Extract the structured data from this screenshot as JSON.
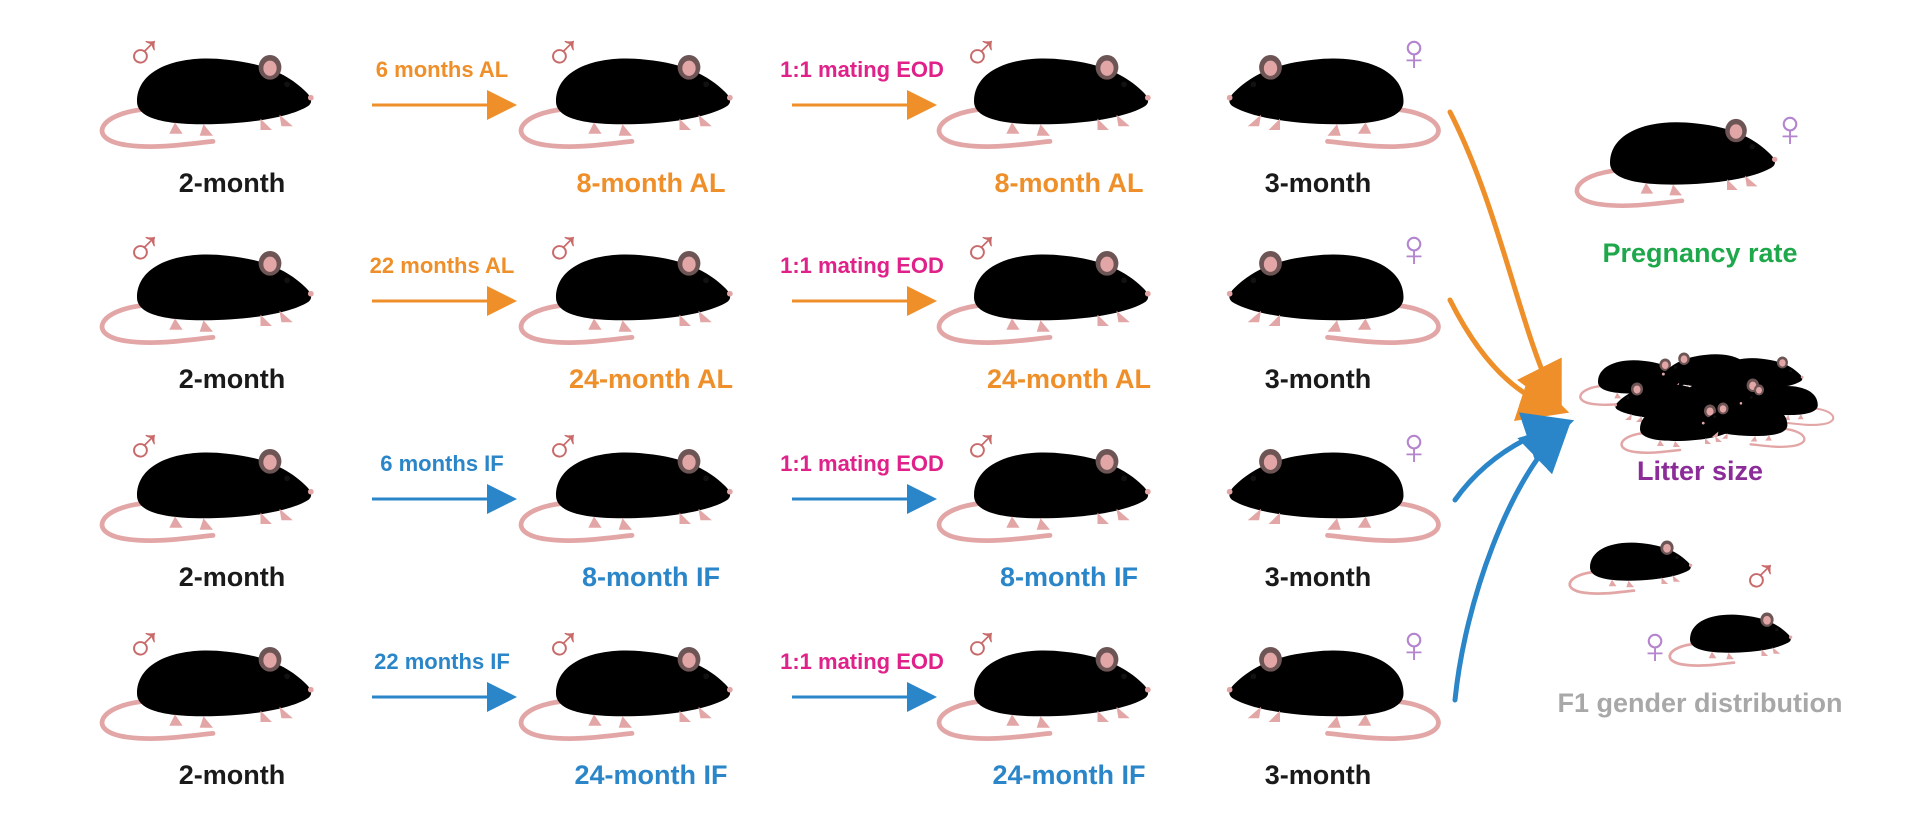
{
  "colors": {
    "male_symbol": "#c96a6a",
    "female_symbol": "#b484cf",
    "al": "#ee8f2a",
    "if": "#2a86c8",
    "mating": "#e0218a",
    "age_label": "#1a1a1a",
    "pregnancy": "#1fa84b",
    "litter": "#8b2c98",
    "gender": "#a8a8a8",
    "mouse_black": "#3a3a3a",
    "mouse_brown": "#5a4a40",
    "mouse_gray": "#a3a3a3",
    "mouse_pink": "#e3a6a6",
    "pup_pink": "#f0b7b7"
  },
  "symbols": {
    "male": "♂",
    "female": "♀"
  },
  "rows": [
    {
      "start_label": "2-month",
      "treatment": "6 months AL",
      "aged_label": "8-month AL",
      "mating": "1:1 mating EOD",
      "mated_label": "8-month AL",
      "female_label": "3-month",
      "diet": "al",
      "aged_fur": "brown"
    },
    {
      "start_label": "2-month",
      "treatment": "22 months AL",
      "aged_label": "24-month AL",
      "mating": "1:1 mating EOD",
      "mated_label": "24-month AL",
      "female_label": "3-month",
      "diet": "al",
      "aged_fur": "gray"
    },
    {
      "start_label": "2-month",
      "treatment": "6 months IF",
      "aged_label": "8-month IF",
      "mating": "1:1 mating EOD",
      "mated_label": "8-month IF",
      "female_label": "3-month",
      "diet": "if",
      "aged_fur": "brown"
    },
    {
      "start_label": "2-month",
      "treatment": "22 months IF",
      "aged_label": "24-month IF",
      "mating": "1:1 mating EOD",
      "mated_label": "24-month IF",
      "female_label": "3-month",
      "diet": "if",
      "aged_fur": "gray"
    }
  ],
  "outcomes": {
    "pregnancy": "Pregnancy rate",
    "litter": "Litter size",
    "gender": "F1 gender distribution"
  }
}
